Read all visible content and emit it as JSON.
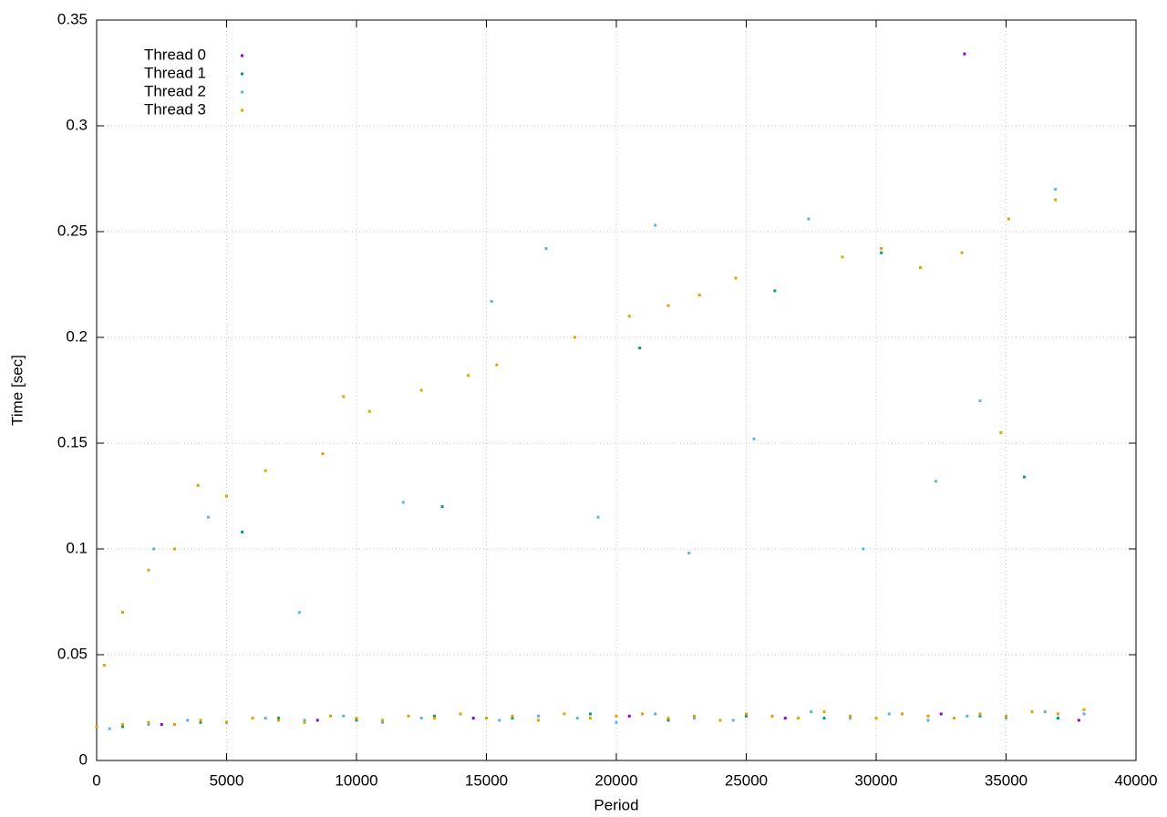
{
  "chart_data": {
    "type": "scatter",
    "xlabel": "Period",
    "ylabel": "Time [sec]",
    "xlim": [
      0,
      40000
    ],
    "ylim": [
      0,
      0.35
    ],
    "xticks": [
      0,
      5000,
      10000,
      15000,
      20000,
      25000,
      30000,
      35000,
      40000
    ],
    "yticks": [
      0,
      0.05,
      0.1,
      0.15,
      0.2,
      0.25,
      0.3,
      0.35
    ],
    "grid": true,
    "legend": "upper left",
    "series": [
      {
        "name": "Thread 0",
        "color": "#9400d3",
        "x": [
          2500,
          8500,
          14500,
          20500,
          26500,
          32500,
          33400,
          37800
        ],
        "values": [
          0.017,
          0.019,
          0.02,
          0.021,
          0.02,
          0.022,
          0.334,
          0.019
        ]
      },
      {
        "name": "Thread 1",
        "color": "#009e73",
        "x": [
          1000,
          4000,
          7000,
          10000,
          13000,
          16000,
          19000,
          22000,
          25000,
          28000,
          31000,
          34000,
          37000,
          5600,
          13300,
          20900,
          26100,
          30200,
          35700
        ],
        "values": [
          0.016,
          0.018,
          0.02,
          0.019,
          0.021,
          0.02,
          0.022,
          0.019,
          0.021,
          0.02,
          0.022,
          0.021,
          0.02,
          0.108,
          0.12,
          0.195,
          0.222,
          0.24,
          0.134
        ]
      },
      {
        "name": "Thread 2",
        "color": "#56b4e9",
        "x": [
          500,
          2000,
          3500,
          5000,
          6500,
          8000,
          9500,
          11000,
          12500,
          14000,
          15500,
          17000,
          18500,
          20000,
          21500,
          23000,
          24500,
          26000,
          27500,
          29000,
          30500,
          32000,
          33500,
          35000,
          36500,
          38000,
          2200,
          4300,
          7800,
          11800,
          15200,
          17300,
          21500,
          25300,
          27400,
          29500,
          32300,
          34000,
          36900,
          19300,
          22800
        ],
        "values": [
          0.015,
          0.017,
          0.019,
          0.018,
          0.02,
          0.019,
          0.021,
          0.018,
          0.02,
          0.022,
          0.019,
          0.021,
          0.02,
          0.018,
          0.022,
          0.02,
          0.019,
          0.021,
          0.023,
          0.02,
          0.022,
          0.019,
          0.021,
          0.02,
          0.023,
          0.022,
          0.1,
          0.115,
          0.07,
          0.122,
          0.217,
          0.242,
          0.253,
          0.152,
          0.256,
          0.1,
          0.132,
          0.17,
          0.27,
          0.115,
          0.098
        ]
      },
      {
        "name": "Thread 3",
        "color": "#e69f00",
        "x": [
          0,
          1000,
          2000,
          3000,
          4000,
          5000,
          6000,
          7000,
          8000,
          9000,
          10000,
          11000,
          12000,
          13000,
          14000,
          15000,
          16000,
          17000,
          18000,
          19000,
          20000,
          21000,
          22000,
          23000,
          24000,
          25000,
          26000,
          27000,
          28000,
          29000,
          30000,
          31000,
          32000,
          33000,
          34000,
          35000,
          36000,
          37000,
          38000,
          300,
          1000,
          2000,
          3000,
          3900,
          5000,
          6500,
          8700,
          9500,
          10500,
          12500,
          14300,
          15400,
          18400,
          20500,
          22000,
          23200,
          24600,
          28700,
          30200,
          31700,
          33300,
          35100,
          36900,
          34800
        ],
        "values": [
          0.016,
          0.017,
          0.018,
          0.017,
          0.019,
          0.018,
          0.02,
          0.019,
          0.018,
          0.021,
          0.02,
          0.019,
          0.021,
          0.02,
          0.022,
          0.02,
          0.021,
          0.019,
          0.022,
          0.02,
          0.021,
          0.022,
          0.02,
          0.021,
          0.019,
          0.022,
          0.021,
          0.02,
          0.023,
          0.021,
          0.02,
          0.022,
          0.021,
          0.02,
          0.022,
          0.021,
          0.023,
          0.022,
          0.024,
          0.045,
          0.07,
          0.09,
          0.1,
          0.13,
          0.125,
          0.137,
          0.145,
          0.172,
          0.165,
          0.175,
          0.182,
          0.187,
          0.2,
          0.21,
          0.215,
          0.22,
          0.228,
          0.238,
          0.242,
          0.233,
          0.24,
          0.256,
          0.265,
          0.155
        ]
      }
    ]
  }
}
